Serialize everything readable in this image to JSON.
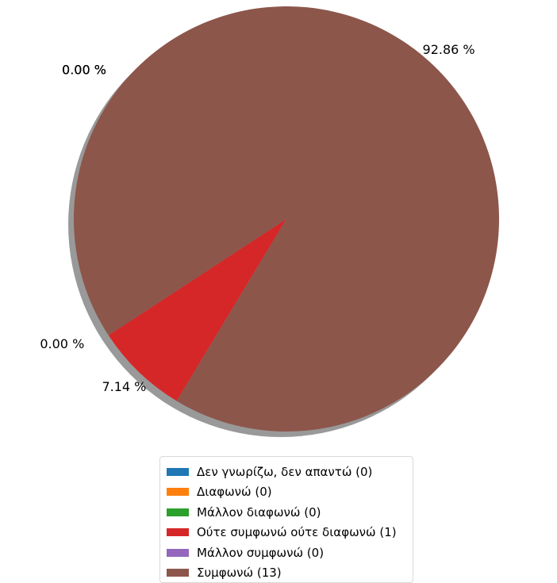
{
  "chart_data": {
    "type": "pie",
    "categories": [
      "Δεν γνωρίζω, δεν απαντώ",
      "Διαφωνώ",
      "Μάλλον διαφωνώ",
      "Ούτε συμφωνώ ούτε διαφωνώ",
      "Μάλλον συμφωνώ",
      "Συμφωνώ"
    ],
    "values": [
      0,
      0,
      0,
      1,
      0,
      13
    ],
    "percent_labels": [
      "0.00 %",
      "0.00 %",
      "0.00 %",
      "7.14 %",
      "0.00 %",
      "92.86 %"
    ],
    "colors": [
      "#1f77b4",
      "#ff7f0e",
      "#2ca02c",
      "#d62728",
      "#9467bd",
      "#8c564b"
    ],
    "shadow": true,
    "legend_position": "bottom"
  },
  "legend": {
    "items": [
      "Δεν γνωρίζω, δεν απαντώ (0)",
      "Διαφωνώ (0)",
      "Μάλλον διαφωνώ (0)",
      "Ούτε συμφωνώ ούτε διαφωνώ (1)",
      "Μάλλον συμφωνώ (0)",
      "Συμφωνώ (13)"
    ]
  }
}
